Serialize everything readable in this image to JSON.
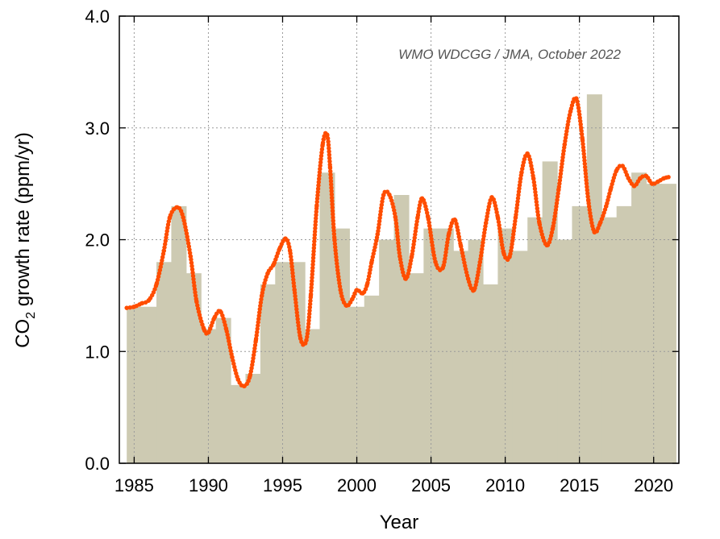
{
  "chart_data": {
    "type": "bar",
    "title": "",
    "annotation": "WMO WDCGG / JMA, October 2022",
    "xlabel": "Year",
    "ylabel_main": "CO",
    "ylabel_sub": "2",
    "ylabel_rest": " growth rate (ppm/yr)",
    "xlim": [
      1984.0,
      2021.7
    ],
    "ylim": [
      0.0,
      4.0
    ],
    "x_ticks": [
      1985,
      1990,
      1995,
      2000,
      2005,
      2010,
      2015,
      2020
    ],
    "y_ticks": [
      0.0,
      1.0,
      2.0,
      3.0,
      4.0
    ],
    "y_tick_labels": [
      "0.0",
      "1.0",
      "2.0",
      "3.0",
      "4.0"
    ],
    "grid": true,
    "colors": {
      "bars": "#cdcab2",
      "line": "#ff4d00",
      "grid": "#9a9a9a",
      "annotation": "#555555"
    },
    "series": [
      {
        "kind": "bar",
        "categories": [
          1985,
          1986,
          1987,
          1988,
          1989,
          1990,
          1991,
          1992,
          1993,
          1994,
          1995,
          1996,
          1997,
          1998,
          1999,
          2000,
          2001,
          2002,
          2003,
          2004,
          2005,
          2006,
          2007,
          2008,
          2009,
          2010,
          2011,
          2012,
          2013,
          2014,
          2015,
          2016,
          2017,
          2018,
          2019,
          2020,
          2021
        ],
        "values": [
          1.4,
          1.4,
          1.8,
          2.3,
          1.7,
          1.2,
          1.3,
          0.7,
          0.8,
          1.6,
          1.8,
          1.8,
          1.2,
          2.6,
          2.1,
          1.4,
          1.5,
          2.0,
          2.4,
          1.7,
          2.1,
          2.1,
          1.9,
          2.0,
          1.6,
          2.1,
          1.9,
          2.2,
          2.7,
          2.0,
          2.3,
          3.3,
          2.2,
          2.3,
          2.6,
          2.5,
          2.5
        ]
      },
      {
        "kind": "line",
        "x": [
          1984.5,
          1985.0,
          1985.5,
          1986.0,
          1986.5,
          1987.0,
          1987.4,
          1987.9,
          1988.3,
          1988.8,
          1989.2,
          1989.7,
          1990.0,
          1990.4,
          1990.8,
          1991.2,
          1991.6,
          1992.0,
          1992.4,
          1992.8,
          1993.2,
          1993.6,
          1994.0,
          1994.4,
          1994.8,
          1995.2,
          1995.5,
          1995.8,
          1996.2,
          1996.6,
          1996.9,
          1997.3,
          1997.7,
          1998.0,
          1998.2,
          1998.5,
          1998.9,
          1999.3,
          1999.7,
          2000.0,
          2000.4,
          2000.7,
          2001.0,
          2001.4,
          2001.8,
          2002.2,
          2002.6,
          2002.9,
          2003.3,
          2003.7,
          2004.1,
          2004.4,
          2004.8,
          2005.3,
          2005.8,
          2006.2,
          2006.6,
          2007.0,
          2007.5,
          2007.9,
          2008.3,
          2008.7,
          2009.1,
          2009.5,
          2009.9,
          2010.3,
          2010.7,
          2011.1,
          2011.5,
          2011.9,
          2012.3,
          2012.8,
          2013.2,
          2013.6,
          2014.0,
          2014.4,
          2014.8,
          2015.2,
          2015.6,
          2016.0,
          2016.4,
          2016.8,
          2017.1,
          2017.5,
          2017.9,
          2018.3,
          2018.7,
          2019.1,
          2019.5,
          2019.9,
          2020.3,
          2020.7,
          2021.0
        ],
        "y": [
          1.39,
          1.4,
          1.43,
          1.46,
          1.6,
          1.9,
          2.2,
          2.29,
          2.2,
          1.85,
          1.45,
          1.2,
          1.17,
          1.3,
          1.36,
          1.2,
          0.95,
          0.75,
          0.69,
          0.78,
          1.1,
          1.5,
          1.7,
          1.78,
          1.92,
          2.01,
          1.9,
          1.55,
          1.12,
          1.1,
          1.5,
          2.3,
          2.85,
          2.94,
          2.65,
          2.0,
          1.55,
          1.41,
          1.47,
          1.55,
          1.52,
          1.6,
          1.8,
          2.05,
          2.4,
          2.4,
          2.2,
          1.85,
          1.65,
          1.85,
          2.2,
          2.37,
          2.2,
          1.8,
          1.75,
          2.05,
          2.18,
          1.95,
          1.65,
          1.55,
          1.8,
          2.15,
          2.38,
          2.2,
          1.88,
          1.85,
          2.2,
          2.6,
          2.77,
          2.55,
          2.15,
          1.95,
          2.1,
          2.45,
          2.85,
          3.15,
          3.26,
          2.9,
          2.35,
          2.07,
          2.15,
          2.3,
          2.45,
          2.62,
          2.66,
          2.55,
          2.48,
          2.55,
          2.57,
          2.5,
          2.52,
          2.55,
          2.56
        ]
      }
    ]
  }
}
